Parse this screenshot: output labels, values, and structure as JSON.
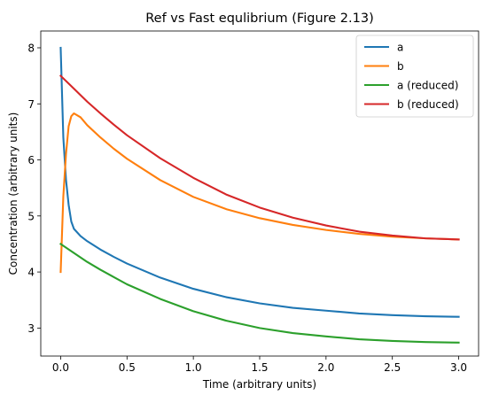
{
  "chart_data": {
    "type": "line",
    "title": "Ref vs Fast equlibrium (Figure 2.13)",
    "xlabel": "Time (arbitrary units)",
    "ylabel": "Concentration (arbitrary units)",
    "xlim": [
      -0.15,
      3.15
    ],
    "ylim": [
      2.5,
      8.3
    ],
    "xticks": [
      0.0,
      0.5,
      1.0,
      1.5,
      2.0,
      2.5,
      3.0
    ],
    "xtick_labels": [
      "0.0",
      "0.5",
      "1.0",
      "1.5",
      "2.0",
      "2.5",
      "3.0"
    ],
    "yticks": [
      3,
      4,
      5,
      6,
      7,
      8
    ],
    "ytick_labels": [
      "3",
      "4",
      "5",
      "6",
      "7",
      "8"
    ],
    "grid": false,
    "legend_position": "top-right",
    "series": [
      {
        "name": "a",
        "color": "#1f77b4",
        "x": [
          0,
          0.02,
          0.04,
          0.06,
          0.08,
          0.1,
          0.15,
          0.2,
          0.3,
          0.4,
          0.5,
          0.75,
          1.0,
          1.25,
          1.5,
          1.75,
          2.0,
          2.25,
          2.5,
          2.75,
          3.0
        ],
        "y": [
          8.0,
          6.4,
          5.65,
          5.2,
          4.9,
          4.77,
          4.64,
          4.55,
          4.4,
          4.27,
          4.15,
          3.9,
          3.7,
          3.55,
          3.44,
          3.36,
          3.31,
          3.26,
          3.23,
          3.21,
          3.2
        ]
      },
      {
        "name": "b",
        "color": "#ff7f0e",
        "x": [
          0,
          0.02,
          0.04,
          0.06,
          0.08,
          0.1,
          0.15,
          0.2,
          0.3,
          0.4,
          0.5,
          0.75,
          1.0,
          1.25,
          1.5,
          1.75,
          2.0,
          2.25,
          2.5,
          2.75,
          3.0
        ],
        "y": [
          4.0,
          5.35,
          6.1,
          6.6,
          6.78,
          6.83,
          6.76,
          6.62,
          6.4,
          6.2,
          6.02,
          5.64,
          5.34,
          5.12,
          4.96,
          4.84,
          4.75,
          4.68,
          4.63,
          4.6,
          4.58
        ]
      },
      {
        "name": "a (reduced)",
        "color": "#2ca02c",
        "x": [
          0,
          0.1,
          0.2,
          0.3,
          0.4,
          0.5,
          0.75,
          1.0,
          1.25,
          1.5,
          1.75,
          2.0,
          2.25,
          2.5,
          2.75,
          3.0
        ],
        "y": [
          4.5,
          4.34,
          4.18,
          4.04,
          3.91,
          3.78,
          3.52,
          3.3,
          3.13,
          3.0,
          2.91,
          2.85,
          2.8,
          2.77,
          2.75,
          2.74
        ]
      },
      {
        "name": "b (reduced)",
        "color": "#d62728",
        "x": [
          0,
          0.1,
          0.2,
          0.3,
          0.4,
          0.5,
          0.75,
          1.0,
          1.25,
          1.5,
          1.75,
          2.0,
          2.25,
          2.5,
          2.75,
          3.0
        ],
        "y": [
          7.5,
          7.27,
          7.04,
          6.83,
          6.63,
          6.44,
          6.03,
          5.68,
          5.38,
          5.15,
          4.97,
          4.83,
          4.72,
          4.65,
          4.6,
          4.58
        ]
      }
    ]
  }
}
